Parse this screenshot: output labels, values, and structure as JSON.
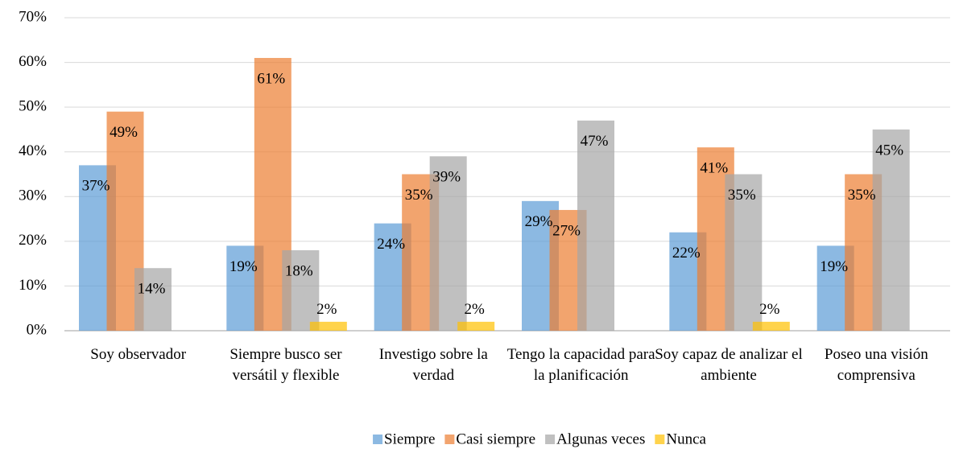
{
  "chart_data": {
    "type": "bar",
    "categories": [
      "Soy observador",
      "Siempre busco ser versátil y flexible",
      "Investigo sobre la verdad",
      "Tengo la capacidad para la planificación",
      "Soy capaz de analizar el ambiente",
      "Poseo una visión comprensiva"
    ],
    "series": [
      {
        "name": "Siempre",
        "color": "#5b9bd5",
        "values": [
          37,
          19,
          24,
          29,
          22,
          19
        ],
        "value_labels": [
          "37%",
          "19%",
          "24%",
          "29%",
          "22%",
          "19%"
        ]
      },
      {
        "name": "Casi siempre",
        "color": "#ed7d31",
        "values": [
          49,
          61,
          35,
          27,
          41,
          35
        ],
        "value_labels": [
          "49%",
          "61%",
          "35%",
          "27%",
          "41%",
          "35%"
        ]
      },
      {
        "name": "Algunas veces",
        "color": "#a5a5a5",
        "values": [
          14,
          18,
          39,
          47,
          35,
          45
        ],
        "value_labels": [
          "14%",
          "18%",
          "39%",
          "47%",
          "35%",
          "45%"
        ]
      },
      {
        "name": "Nunca",
        "color": "#ffc000",
        "values": [
          null,
          2,
          2,
          null,
          2,
          null
        ],
        "value_labels": [
          null,
          "2%",
          "2%",
          null,
          "2%",
          null
        ]
      }
    ],
    "ylim": [
      0,
      70
    ],
    "yticks": [
      {
        "value": 0,
        "label": "0%"
      },
      {
        "value": 10,
        "label": "10%"
      },
      {
        "value": 20,
        "label": "20%"
      },
      {
        "value": 30,
        "label": "30%"
      },
      {
        "value": 40,
        "label": "40%"
      },
      {
        "value": 50,
        "label": "50%"
      },
      {
        "value": 60,
        "label": "60%"
      },
      {
        "value": 70,
        "label": "70%"
      }
    ],
    "grid": true,
    "legend": "bottom"
  }
}
